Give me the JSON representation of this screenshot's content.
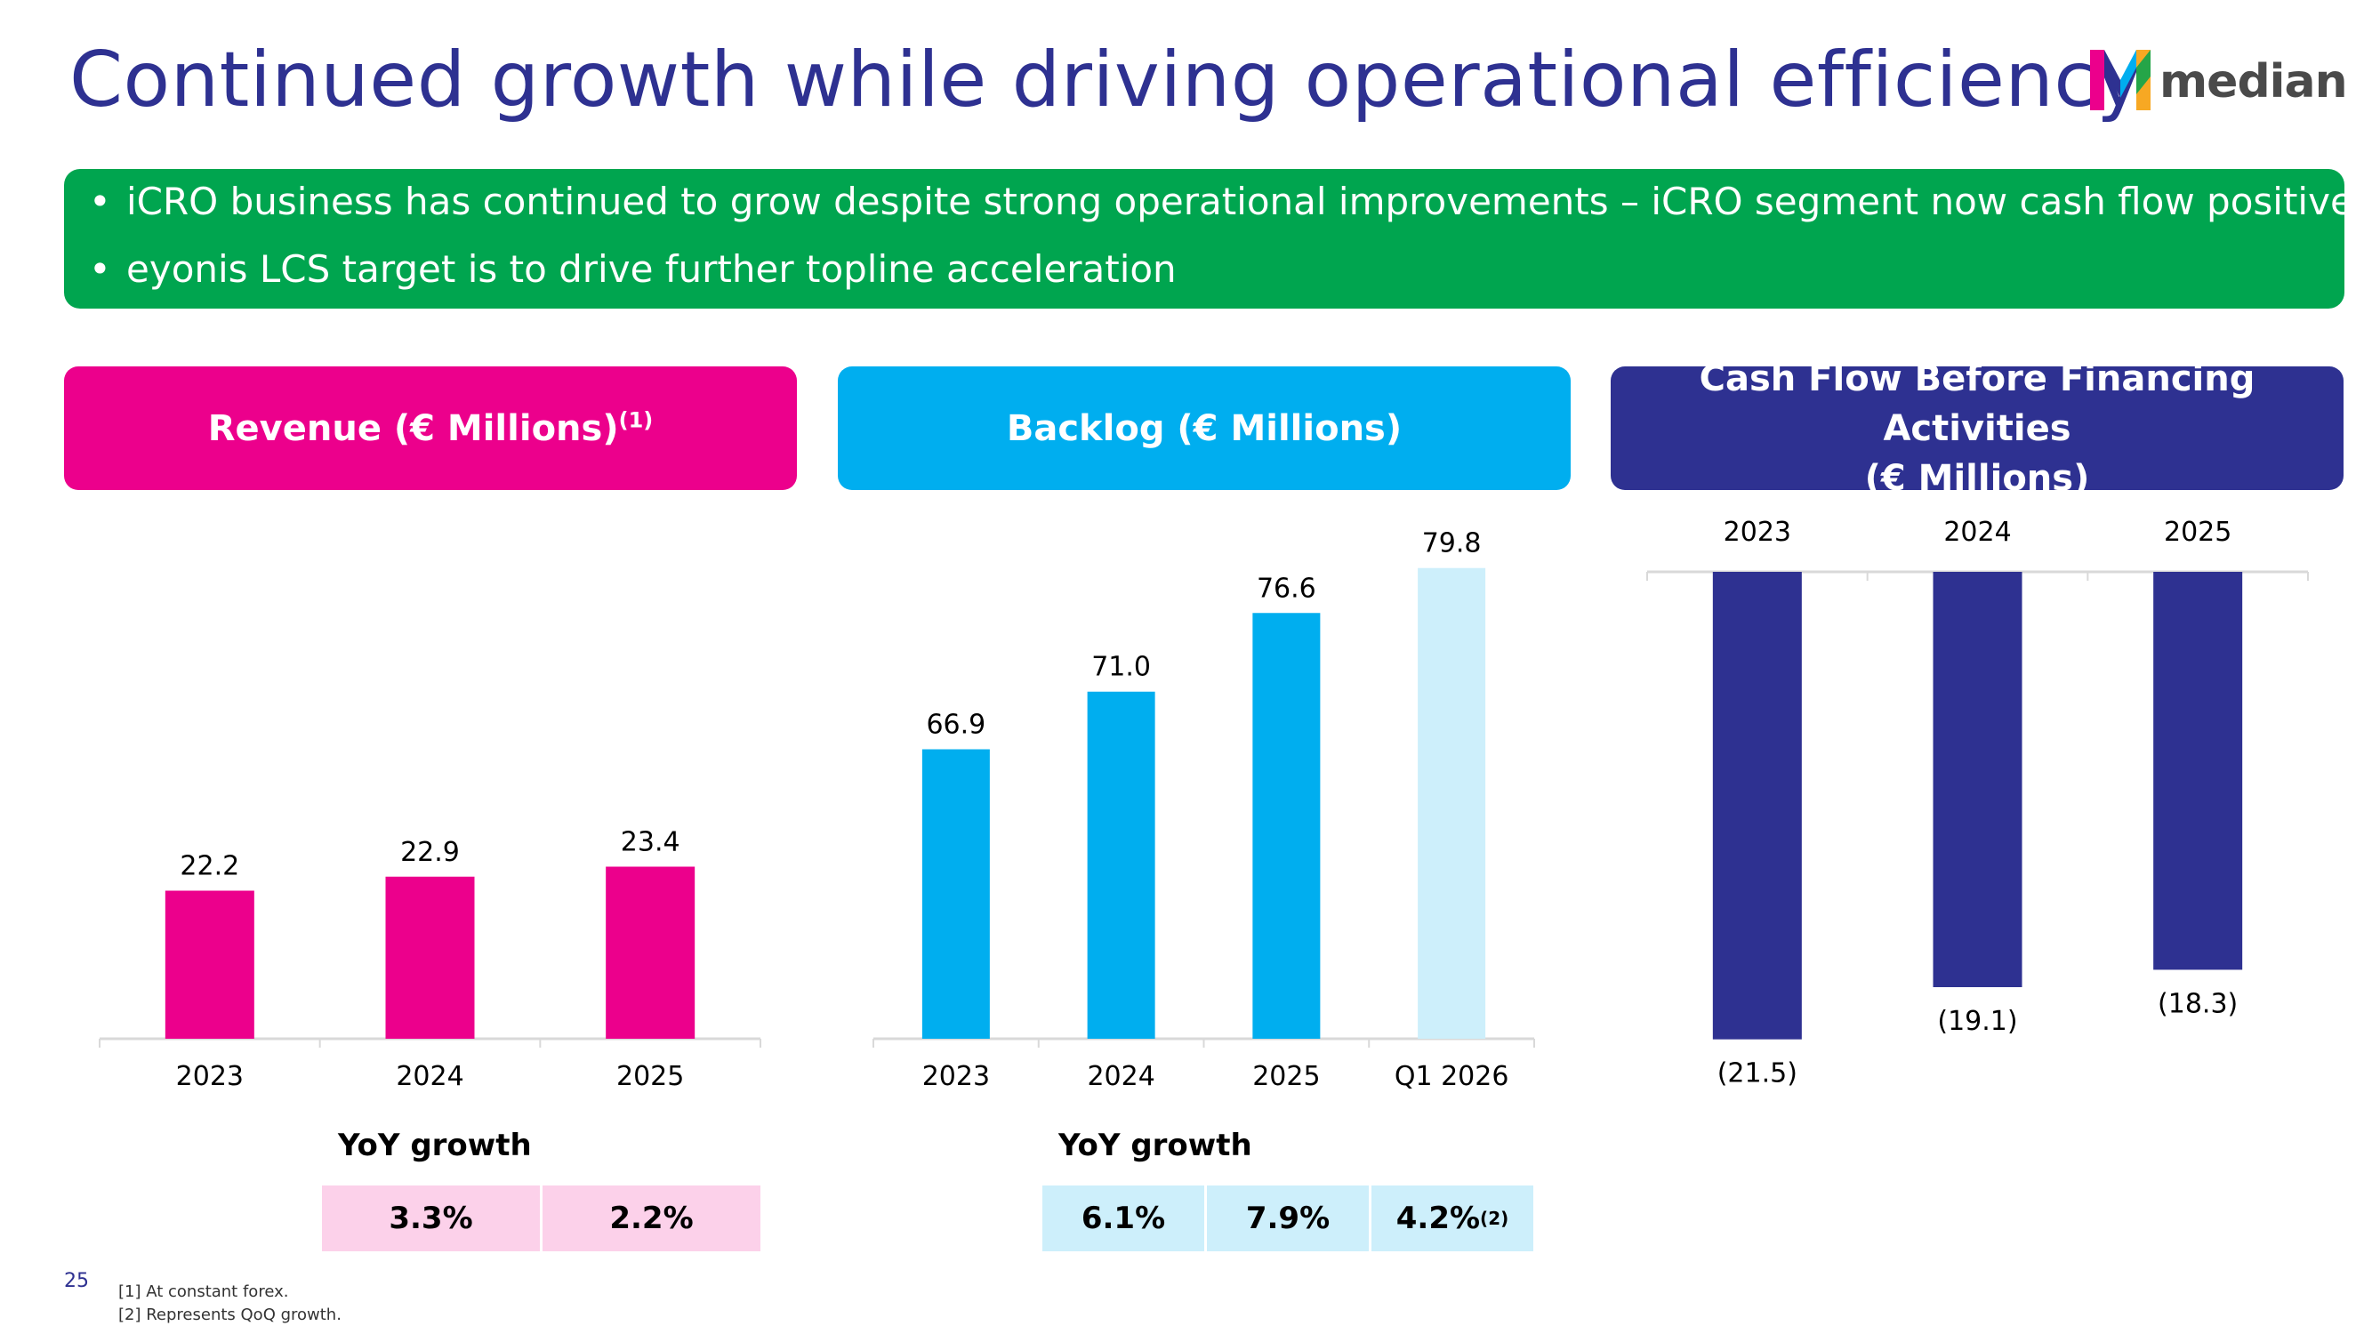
{
  "title": "Continued growth while driving operational efficiency",
  "logo": {
    "text": "median",
    "icon": "median-m-logo"
  },
  "bullets": [
    "iCRO business has continued to grow despite strong operational improvements – iCRO segment now cash flow positive",
    "eyonis LCS target is to drive further topline acceleration"
  ],
  "colors": {
    "title": "#2e3191",
    "bullet_box": "#00a54f",
    "revenue": "#ec008c",
    "backlog": "#00aeef",
    "backlog_light": "#cdeffb",
    "cashflow": "#2e3191",
    "revenue_yoy_bg": "#fcd1ea",
    "backlog_yoy_bg": "#cdeffb"
  },
  "panels": {
    "revenue": {
      "title": "Revenue (€ Millions)",
      "title_sup": "(1)"
    },
    "backlog": {
      "title": "Backlog (€ Millions)"
    },
    "cashflow": {
      "title_line1": "Cash Flow Before Financing Activities",
      "title_line2": "(€ Millions)"
    }
  },
  "chart_data": [
    {
      "type": "bar",
      "title": "Revenue (€ Millions)",
      "categories": [
        "2023",
        "2024",
        "2025"
      ],
      "values": [
        22.2,
        22.9,
        23.4
      ],
      "labels": [
        "22.2",
        "22.9",
        "23.4"
      ]
    },
    {
      "type": "bar",
      "title": "Backlog (€ Millions)",
      "categories": [
        "2023",
        "2024",
        "2025",
        "Q1 2026"
      ],
      "values": [
        66.9,
        71.0,
        76.6,
        79.8
      ],
      "labels": [
        "66.9",
        "71.0",
        "76.6",
        "79.8"
      ]
    },
    {
      "type": "bar",
      "title": "Cash Flow Before Financing Activities (€ Millions)",
      "categories": [
        "2023",
        "2024",
        "2025"
      ],
      "values": [
        -21.5,
        -19.1,
        -18.3
      ],
      "labels": [
        "(21.5)",
        "(19.1)",
        "(18.3)"
      ]
    }
  ],
  "yoy": {
    "label": "YoY growth",
    "revenue": [
      {
        "value": "3.3%"
      },
      {
        "value": "2.2%"
      }
    ],
    "backlog": [
      {
        "value": "6.1%"
      },
      {
        "value": "7.9%"
      },
      {
        "value": "4.2%",
        "sup": "(2)"
      }
    ]
  },
  "page_number": "25",
  "footnotes": [
    "[1] At constant forex.",
    "[2] Represents QoQ growth."
  ]
}
